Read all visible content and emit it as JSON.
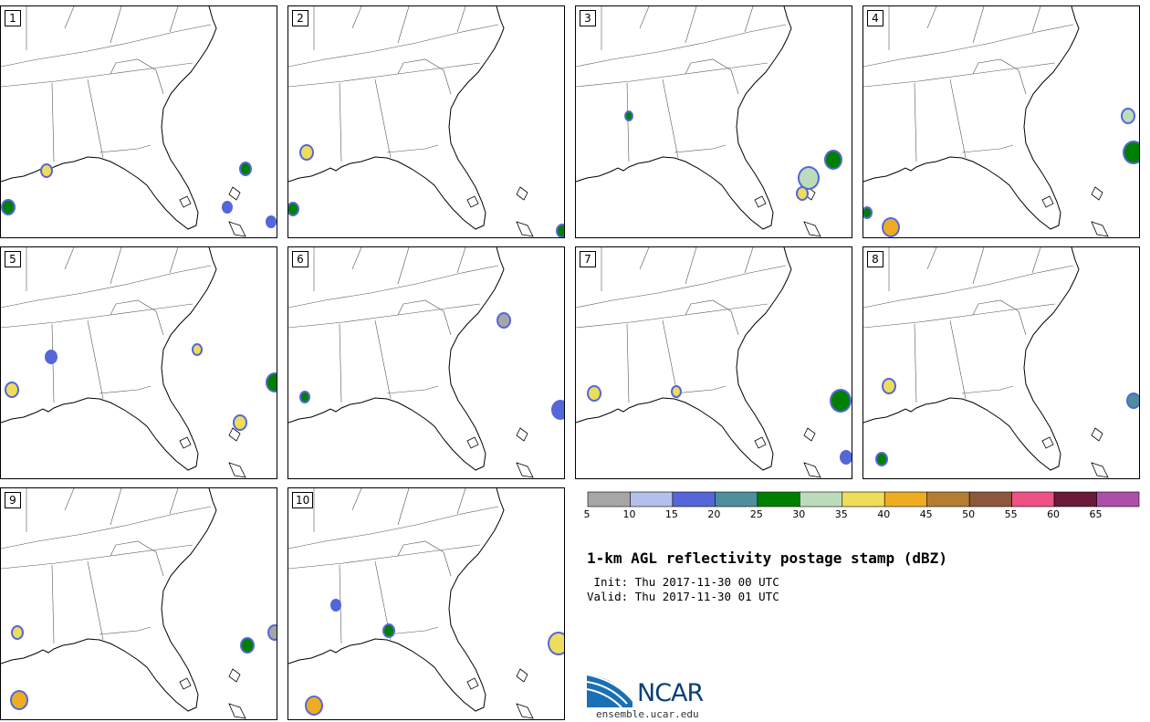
{
  "panels": [
    {
      "label": "1"
    },
    {
      "label": "2"
    },
    {
      "label": "3"
    },
    {
      "label": "4"
    },
    {
      "label": "5"
    },
    {
      "label": "6"
    },
    {
      "label": "7"
    },
    {
      "label": "8"
    },
    {
      "label": "9"
    },
    {
      "label": "10"
    }
  ],
  "colorbar": {
    "colors": [
      "#a6a6a6",
      "#b4bfec",
      "#5566d9",
      "#4d8f9c",
      "#008000",
      "#bcdcbc",
      "#eedc5b",
      "#eeac22",
      "#b57d32",
      "#8c573b",
      "#ee5183",
      "#6b1a3a",
      "#ad4fa9"
    ],
    "ticks": [
      "5",
      "10",
      "15",
      "20",
      "25",
      "30",
      "35",
      "40",
      "45",
      "50",
      "55",
      "60",
      "65"
    ]
  },
  "title": "1-km AGL reflectivity postage stamp (dBZ)",
  "init_line": " Init: Thu 2017-11-30 00 UTC",
  "valid_line": "Valid: Thu 2017-11-30 01 UTC",
  "logo": {
    "name": "NCAR",
    "url": "ensemble.ucar.edu"
  }
}
